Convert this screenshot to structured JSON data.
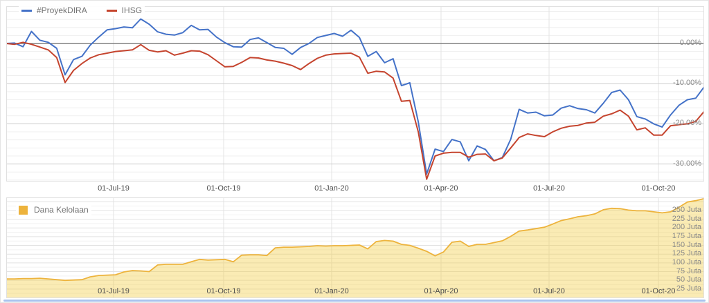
{
  "top_legend": {
    "items": [
      {
        "label": "#ProyekDIRA",
        "color": "#4472C8"
      },
      {
        "label": "IHSG",
        "color": "#C5442E"
      }
    ]
  },
  "bottom_legend": {
    "items": [
      {
        "label": "Dana Kelolaan",
        "color": "#EDB33C"
      }
    ]
  },
  "scrollbar_color": "#A9C3EE",
  "chart_data": [
    {
      "type": "line",
      "title": "Performance comparison (%), weekly samples Apr-2019 to Nov-2020",
      "legend_position": "top-left",
      "grid": true,
      "zero_line": true,
      "y_axis": {
        "unit": "percent",
        "range": [
          -34.5,
          9.3
        ],
        "tick_values": [
          0,
          -10,
          -20,
          -30
        ],
        "tick_labels": [
          "0.00%",
          "-10.00%",
          "-20.00%",
          "-30.00%"
        ],
        "minor_step": 2
      },
      "x_axis": {
        "tick_labels": [
          "01-Jul-19",
          "01-Oct-19",
          "01-Jan-20",
          "01-Apr-20",
          "01-Jul-20",
          "01-Oct-20"
        ]
      },
      "series": [
        {
          "name": "#ProyekDIRA",
          "color": "#4472C8",
          "values": [
            0.0,
            0.1,
            -0.8,
            3.0,
            0.8,
            0.3,
            -1.2,
            -7.8,
            -4.0,
            -3.2,
            -0.4,
            1.6,
            3.4,
            3.7,
            4.1,
            3.9,
            6.1,
            4.8,
            2.9,
            2.3,
            2.1,
            2.7,
            4.5,
            3.4,
            3.5,
            1.6,
            0.2,
            -0.8,
            -0.9,
            1.0,
            1.4,
            0.2,
            -1.0,
            -1.2,
            -2.7,
            -1.0,
            0.0,
            1.5,
            2.0,
            2.5,
            1.8,
            3.3,
            1.5,
            -3.2,
            -2.0,
            -4.8,
            -3.8,
            -10.5,
            -9.8,
            -19.5,
            -32.5,
            -26.3,
            -26.9,
            -23.9,
            -24.5,
            -29.2,
            -25.5,
            -26.4,
            -29.2,
            -28.4,
            -23.8,
            -16.4,
            -17.3,
            -17.1,
            -18.0,
            -17.8,
            -16.1,
            -15.5,
            -16.2,
            -16.5,
            -17.3,
            -14.9,
            -12.2,
            -11.6,
            -14.0,
            -18.2,
            -18.8,
            -20.0,
            -20.8,
            -17.8,
            -15.4,
            -14.0,
            -13.6,
            -10.8
          ]
        },
        {
          "name": "IHSG",
          "color": "#C5442E",
          "values": [
            0.0,
            -0.2,
            0.3,
            -0.2,
            -0.9,
            -1.6,
            -3.5,
            -9.7,
            -6.7,
            -5.0,
            -3.6,
            -2.8,
            -2.4,
            -2.0,
            -1.8,
            -1.6,
            -0.3,
            -1.7,
            -2.1,
            -1.8,
            -2.9,
            -2.4,
            -1.8,
            -1.9,
            -2.8,
            -4.3,
            -5.8,
            -5.7,
            -4.7,
            -3.5,
            -3.6,
            -4.1,
            -4.4,
            -4.9,
            -5.5,
            -6.5,
            -5.0,
            -3.7,
            -2.9,
            -2.6,
            -2.5,
            -2.4,
            -3.4,
            -7.4,
            -6.9,
            -7.1,
            -8.6,
            -14.4,
            -14.2,
            -22.0,
            -33.8,
            -28.0,
            -27.3,
            -27.1,
            -27.1,
            -28.3,
            -27.6,
            -27.5,
            -29.2,
            -28.5,
            -26.0,
            -23.4,
            -22.5,
            -22.9,
            -23.2,
            -22.0,
            -21.1,
            -20.6,
            -20.4,
            -19.8,
            -19.6,
            -18.1,
            -17.5,
            -16.6,
            -18.1,
            -21.5,
            -21.0,
            -22.8,
            -22.8,
            -20.5,
            -20.2,
            -20.0,
            -19.4,
            -16.9
          ]
        }
      ]
    },
    {
      "type": "area",
      "title": "Dana Kelolaan (assets under management, Juta), weekly samples Apr-2019 to Nov-2020",
      "legend_position": "top-left",
      "grid": true,
      "y_axis": {
        "unit": "Juta",
        "range": [
          0,
          287
        ],
        "tick_values": [
          250,
          225,
          200,
          175,
          150,
          125,
          100,
          75,
          50,
          25
        ],
        "tick_labels": [
          "250 Juta",
          "225 Juta",
          "200 Juta",
          "175 Juta",
          "150 Juta",
          "125 Juta",
          "100 Juta",
          "75 Juta",
          "50 Juta",
          "25 Juta"
        ],
        "minor_step": 12.5
      },
      "x_axis": {
        "tick_labels": [
          "01-Jul-19",
          "01-Oct-19",
          "01-Jan-20",
          "01-Apr-20",
          "01-Jul-20",
          "01-Oct-20"
        ]
      },
      "series": [
        {
          "name": "Dana Kelolaan",
          "color": "#EDB33C",
          "fill": "rgba(241,202,58,0.38)",
          "values": [
            54,
            54,
            55,
            55,
            56,
            54,
            52,
            50,
            51,
            52,
            60,
            64,
            65,
            66,
            74,
            78,
            77,
            75,
            94,
            96,
            96,
            96,
            103,
            110,
            108,
            109,
            110,
            103,
            122,
            123,
            123,
            121,
            143,
            145,
            145,
            146,
            147,
            149,
            148,
            149,
            149,
            150,
            151,
            140,
            161,
            164,
            162,
            153,
            150,
            142,
            133,
            120,
            131,
            159,
            162,
            147,
            153,
            153,
            158,
            163,
            176,
            191,
            194,
            198,
            202,
            211,
            221,
            226,
            232,
            235,
            240,
            252,
            256,
            255,
            251,
            249,
            249,
            246,
            243,
            246,
            259,
            274,
            278,
            284
          ]
        }
      ]
    }
  ]
}
